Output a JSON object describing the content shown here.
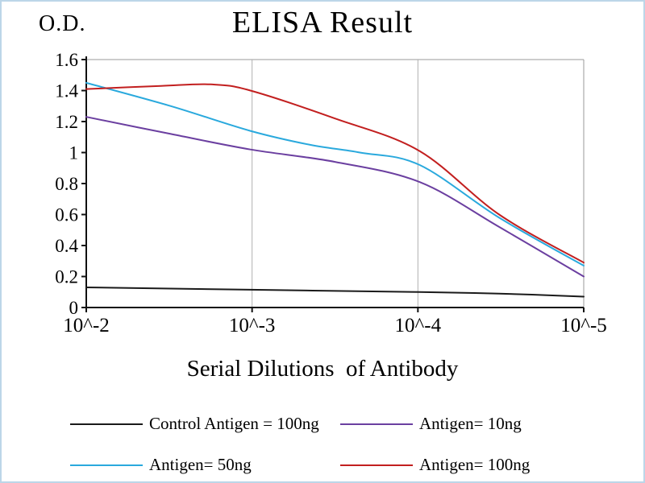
{
  "chart_data": {
    "type": "line",
    "title": "ELISA Result",
    "ylabel": "O.D.",
    "xlabel": "Serial Dilutions  of Antibody",
    "x_tick_labels": [
      "10^-2",
      "10^-3",
      "10^-4",
      "10^-5"
    ],
    "y_tick_labels": [
      "0",
      "0.2",
      "0.4",
      "0.6",
      "0.8",
      "1",
      "1.2",
      "1.4",
      "1.6"
    ],
    "y_ticks": [
      0,
      0.2,
      0.4,
      0.6,
      0.8,
      1,
      1.2,
      1.4,
      1.6
    ],
    "ylim": [
      0,
      1.6
    ],
    "grid": "vertical-only",
    "legend_position": "bottom",
    "series": [
      {
        "name": "Control Antigen = 100ng",
        "color": "#1a1a1a",
        "values": [
          0.13,
          0.11,
          0.1,
          0.07
        ],
        "samples": [
          [
            0,
            0.13
          ],
          [
            0.33,
            0.115
          ],
          [
            0.67,
            0.1
          ],
          [
            0.83,
            0.09
          ],
          [
            1,
            0.07
          ]
        ]
      },
      {
        "name": "Antigen= 10ng",
        "color": "#6b3fa0",
        "values": [
          1.23,
          1.02,
          0.81,
          0.2
        ],
        "samples": [
          [
            0,
            1.23
          ],
          [
            0.17,
            1.12
          ],
          [
            0.33,
            1.02
          ],
          [
            0.5,
            0.94
          ],
          [
            0.67,
            0.81
          ],
          [
            0.83,
            0.52
          ],
          [
            1,
            0.2
          ]
        ]
      },
      {
        "name": "Antigen= 50ng",
        "color": "#2aa9dd",
        "values": [
          1.45,
          1.14,
          0.92,
          0.27
        ],
        "samples": [
          [
            0,
            1.45
          ],
          [
            0.17,
            1.3
          ],
          [
            0.33,
            1.14
          ],
          [
            0.45,
            1.05
          ],
          [
            0.55,
            1.0
          ],
          [
            0.67,
            0.92
          ],
          [
            0.83,
            0.58
          ],
          [
            1,
            0.27
          ]
        ]
      },
      {
        "name": "Antigen= 100ng",
        "color": "#c21f1f",
        "values": [
          1.41,
          1.4,
          1.01,
          0.29
        ],
        "samples": [
          [
            0,
            1.41
          ],
          [
            0.15,
            1.43
          ],
          [
            0.25,
            1.44
          ],
          [
            0.33,
            1.4
          ],
          [
            0.5,
            1.22
          ],
          [
            0.67,
            1.01
          ],
          [
            0.83,
            0.6
          ],
          [
            1,
            0.29
          ]
        ]
      }
    ]
  }
}
